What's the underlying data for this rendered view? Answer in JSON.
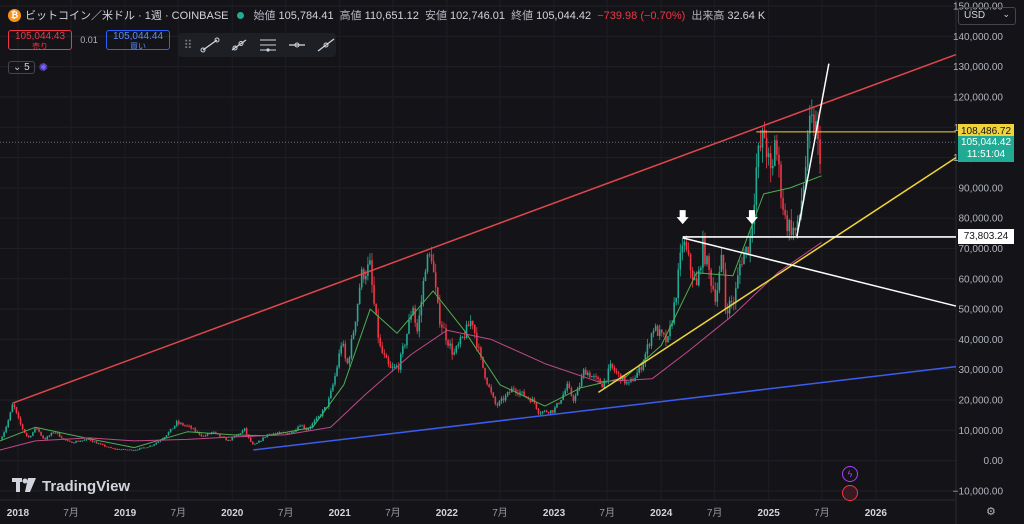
{
  "header": {
    "coin_glyph": "₿",
    "symbol": "ビットコイン／米ドル · 1週 · COINBASE",
    "open_label": "始値",
    "open": "105,784.41",
    "high_label": "高値",
    "high": "110,651.12",
    "low_label": "安値",
    "low": "102,746.01",
    "close_label": "終値",
    "close": "105,044.42",
    "change": "−739.98 (−0.70%)",
    "volume_label": "出来高",
    "volume": "32.64 K"
  },
  "trade": {
    "sell_price": "105,044.43",
    "sell_label": "売り",
    "spread": "0.01",
    "buy_price": "105,044.44",
    "buy_label": "買い"
  },
  "indicator": {
    "count": "5"
  },
  "currency": "USD",
  "brand": "TradingView",
  "colors": {
    "up": "#22ab94",
    "down": "#f23645",
    "red_line": "#e0474c",
    "blue_line": "#3c5cf0",
    "yellow_line": "#f0d23c",
    "ma_short": "#4caf50",
    "ma_long": "#c0488a",
    "bg": "#141418"
  },
  "chart_data": {
    "type": "candlestick",
    "interval": "1 week",
    "y_axis": {
      "ticks": [
        -10000,
        0,
        10000,
        20000,
        30000,
        40000,
        50000,
        60000,
        70000,
        80000,
        90000,
        100000,
        110000,
        120000,
        130000,
        140000,
        150000
      ],
      "tick_labels": [
        "−10,000.00",
        "0.00",
        "10,000.00",
        "20,000.00",
        "30,000.00",
        "40,000.00",
        "50,000.00",
        "60,000.00",
        "70,000.00",
        "80,000.00",
        "90,000.00",
        "100,000.00",
        "110,000.00",
        "120,000.00",
        "130,000.00",
        "140,000.00",
        "150,000.00"
      ],
      "range": [
        -13000,
        152000
      ]
    },
    "x_axis": {
      "range": [
        "2017-11-01",
        "2026-10-01"
      ],
      "ticks": [
        {
          "date": "2018-01-01",
          "label": "2018",
          "bold": true
        },
        {
          "date": "2018-07-01",
          "label": "7月"
        },
        {
          "date": "2019-01-01",
          "label": "2019",
          "bold": true
        },
        {
          "date": "2019-07-01",
          "label": "7月"
        },
        {
          "date": "2020-01-01",
          "label": "2020",
          "bold": true
        },
        {
          "date": "2020-07-01",
          "label": "7月"
        },
        {
          "date": "2021-01-01",
          "label": "2021",
          "bold": true
        },
        {
          "date": "2021-07-01",
          "label": "7月"
        },
        {
          "date": "2022-01-01",
          "label": "2022",
          "bold": true
        },
        {
          "date": "2022-07-01",
          "label": "7月"
        },
        {
          "date": "2023-01-01",
          "label": "2023",
          "bold": true
        },
        {
          "date": "2023-07-01",
          "label": "7月"
        },
        {
          "date": "2024-01-01",
          "label": "2024",
          "bold": true
        },
        {
          "date": "2024-07-01",
          "label": "7月"
        },
        {
          "date": "2025-01-01",
          "label": "2025",
          "bold": true
        },
        {
          "date": "2025-07-01",
          "label": "7月"
        },
        {
          "date": "2026-01-01",
          "label": "2026",
          "bold": true
        }
      ]
    },
    "price_anchors": [
      [
        "2017-11-01",
        7000
      ],
      [
        "2017-12-15",
        19000
      ],
      [
        "2018-02-05",
        7500
      ],
      [
        "2018-03-05",
        11000
      ],
      [
        "2018-04-01",
        7000
      ],
      [
        "2018-05-05",
        9700
      ],
      [
        "2018-06-25",
        6000
      ],
      [
        "2018-09-01",
        7000
      ],
      [
        "2018-11-25",
        3800
      ],
      [
        "2019-02-01",
        3500
      ],
      [
        "2019-04-01",
        5000
      ],
      [
        "2019-06-26",
        12500
      ],
      [
        "2019-08-10",
        11000
      ],
      [
        "2019-09-25",
        8000
      ],
      [
        "2019-10-26",
        9500
      ],
      [
        "2019-12-18",
        6600
      ],
      [
        "2020-02-12",
        10300
      ],
      [
        "2020-03-13",
        5000
      ],
      [
        "2020-05-01",
        8800
      ],
      [
        "2020-07-20",
        9200
      ],
      [
        "2020-08-20",
        12000
      ],
      [
        "2020-09-10",
        10200
      ],
      [
        "2020-11-20",
        18500
      ],
      [
        "2021-01-08",
        40000
      ],
      [
        "2021-01-25",
        31000
      ],
      [
        "2021-03-14",
        61000
      ],
      [
        "2021-04-14",
        64000
      ],
      [
        "2021-05-19",
        37000
      ],
      [
        "2021-06-22",
        30000
      ],
      [
        "2021-07-20",
        31000
      ],
      [
        "2021-09-07",
        52000
      ],
      [
        "2021-09-21",
        42000
      ],
      [
        "2021-10-20",
        65000
      ],
      [
        "2021-11-10",
        68000
      ],
      [
        "2021-12-04",
        48000
      ],
      [
        "2022-01-24",
        35000
      ],
      [
        "2022-03-28",
        47000
      ],
      [
        "2022-05-12",
        28000
      ],
      [
        "2022-06-18",
        18000
      ],
      [
        "2022-08-15",
        24000
      ],
      [
        "2022-10-25",
        19500
      ],
      [
        "2022-11-10",
        16000
      ],
      [
        "2022-12-30",
        16500
      ],
      [
        "2023-02-15",
        24500
      ],
      [
        "2023-03-10",
        20000
      ],
      [
        "2023-04-14",
        30000
      ],
      [
        "2023-06-15",
        25000
      ],
      [
        "2023-07-13",
        31000
      ],
      [
        "2023-09-11",
        25000
      ],
      [
        "2023-10-20",
        30000
      ],
      [
        "2023-12-05",
        44000
      ],
      [
        "2024-01-23",
        39000
      ],
      [
        "2024-03-14",
        73000
      ],
      [
        "2024-05-01",
        57000
      ],
      [
        "2024-05-21",
        71000
      ],
      [
        "2024-07-05",
        54000
      ],
      [
        "2024-07-29",
        69000
      ],
      [
        "2024-08-05",
        50000
      ],
      [
        "2024-09-06",
        53000
      ],
      [
        "2024-09-27",
        66000
      ],
      [
        "2024-10-29",
        72000
      ],
      [
        "2024-11-22",
        99000
      ],
      [
        "2024-12-17",
        108000
      ],
      [
        "2025-01-13",
        91000
      ],
      [
        "2025-01-20",
        109000
      ],
      [
        "2025-02-27",
        79000
      ],
      [
        "2025-04-07",
        75000
      ],
      [
        "2025-05-22",
        111000
      ],
      [
        "2025-06-10",
        110500
      ],
      [
        "2025-06-22",
        100000
      ],
      [
        "2025-06-30",
        105044
      ]
    ],
    "moving_averages": [
      {
        "name": "MA short",
        "color": "#4caf50",
        "points": [
          [
            "2017-11-01",
            6500
          ],
          [
            "2018-03-01",
            11000
          ],
          [
            "2018-09-01",
            7200
          ],
          [
            "2019-02-01",
            4300
          ],
          [
            "2019-08-01",
            9500
          ],
          [
            "2020-01-01",
            8500
          ],
          [
            "2020-05-01",
            8200
          ],
          [
            "2020-10-01",
            11000
          ],
          [
            "2021-01-15",
            25000
          ],
          [
            "2021-04-15",
            50000
          ],
          [
            "2021-07-15",
            42000
          ],
          [
            "2021-11-15",
            56000
          ],
          [
            "2022-03-01",
            43000
          ],
          [
            "2022-07-01",
            25000
          ],
          [
            "2022-12-01",
            18000
          ],
          [
            "2023-04-01",
            24000
          ],
          [
            "2023-09-01",
            27500
          ],
          [
            "2024-01-01",
            38000
          ],
          [
            "2024-05-01",
            62000
          ],
          [
            "2024-09-01",
            61000
          ],
          [
            "2024-12-15",
            88000
          ],
          [
            "2025-03-15",
            90000
          ],
          [
            "2025-06-30",
            94000
          ]
        ]
      },
      {
        "name": "MA long",
        "color": "#c0488a",
        "points": [
          [
            "2017-11-01",
            3500
          ],
          [
            "2018-03-01",
            6500
          ],
          [
            "2018-09-01",
            7500
          ],
          [
            "2019-02-01",
            6500
          ],
          [
            "2019-08-01",
            7000
          ],
          [
            "2020-01-01",
            7800
          ],
          [
            "2020-07-01",
            8500
          ],
          [
            "2020-12-01",
            11000
          ],
          [
            "2021-04-01",
            22000
          ],
          [
            "2021-09-01",
            35000
          ],
          [
            "2022-01-01",
            43000
          ],
          [
            "2022-06-01",
            40000
          ],
          [
            "2022-12-01",
            32000
          ],
          [
            "2023-06-01",
            26000
          ],
          [
            "2023-12-01",
            27000
          ],
          [
            "2024-04-01",
            36000
          ],
          [
            "2024-09-01",
            48000
          ],
          [
            "2025-02-01",
            62000
          ],
          [
            "2025-06-30",
            72000
          ]
        ]
      }
    ],
    "trend_lines": [
      {
        "name": "red",
        "color": "#e0474c",
        "from": [
          "2017-12-15",
          19000
        ],
        "to": [
          "2026-10-01",
          134000
        ]
      },
      {
        "name": "blue",
        "color": "#3c5cf0",
        "from": [
          "2020-03-13",
          3500
        ],
        "to": [
          "2026-10-01",
          31000
        ]
      },
      {
        "name": "yellow",
        "color": "#f0d23c",
        "from": [
          "2023-06-01",
          22500
        ],
        "to": [
          "2026-10-01",
          100000
        ]
      },
      {
        "name": "white-down",
        "color": "#ffffff",
        "from": [
          "2024-03-14",
          73500
        ],
        "to": [
          "2026-10-01",
          51000
        ]
      },
      {
        "name": "white-steep",
        "color": "#ffffff",
        "from": [
          "2025-04-07",
          74000
        ],
        "to": [
          "2025-07-25",
          131000
        ]
      }
    ],
    "horizontal_lines": [
      {
        "value": 108486.72,
        "label": "108,486.72",
        "color": "#f0d23c",
        "from": "2024-11-20"
      },
      {
        "value": 73803.24,
        "label": "73,803.24",
        "color": "#ffffff",
        "from": "2024-03-14"
      }
    ],
    "arrows": [
      {
        "date": "2024-03-14",
        "value": 80000
      },
      {
        "date": "2024-11-05",
        "value": 80000
      }
    ],
    "last_price": {
      "value": 105044.42,
      "label": "105,044.42",
      "countdown": "11:51:04",
      "color": "#22ab94"
    }
  }
}
